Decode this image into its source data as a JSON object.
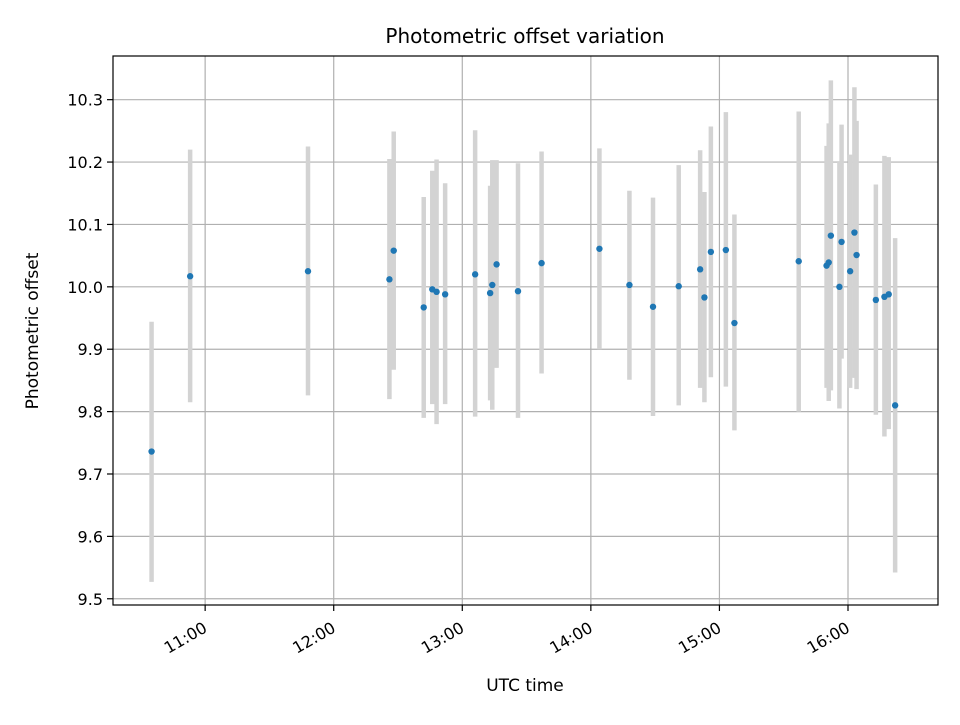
{
  "chart_data": {
    "type": "scatter",
    "title": "Photometric offset variation",
    "xlabel": "UTC time",
    "ylabel": "Photometric offset",
    "grid": true,
    "colors": {
      "point": "#1f77b4",
      "errorbar": "#d3d3d3",
      "grid": "#b0b0b0"
    },
    "xlim": [
      "10:17",
      "16:42"
    ],
    "ylim": [
      9.49,
      10.37
    ],
    "xticks": [
      "11:00",
      "12:00",
      "13:00",
      "14:00",
      "15:00",
      "16:00"
    ],
    "yticks": [
      "9.5",
      "9.6",
      "9.7",
      "9.8",
      "9.9",
      "10.0",
      "10.1",
      "10.2",
      "10.3"
    ],
    "points": [
      {
        "x": "10:35",
        "y": 9.736,
        "lo": 9.527,
        "hi": 9.944
      },
      {
        "x": "10:53",
        "y": 10.017,
        "lo": 9.815,
        "hi": 10.22
      },
      {
        "x": "11:48",
        "y": 10.025,
        "lo": 9.826,
        "hi": 10.225
      },
      {
        "x": "12:26",
        "y": 10.012,
        "lo": 9.82,
        "hi": 10.205
      },
      {
        "x": "12:28",
        "y": 10.058,
        "lo": 9.867,
        "hi": 10.249
      },
      {
        "x": "12:42",
        "y": 9.967,
        "lo": 9.79,
        "hi": 10.144
      },
      {
        "x": "12:46",
        "y": 9.996,
        "lo": 9.812,
        "hi": 10.186
      },
      {
        "x": "12:48",
        "y": 9.992,
        "lo": 9.78,
        "hi": 10.204
      },
      {
        "x": "12:52",
        "y": 9.988,
        "lo": 9.812,
        "hi": 10.166
      },
      {
        "x": "13:06",
        "y": 10.02,
        "lo": 9.792,
        "hi": 10.251
      },
      {
        "x": "13:13",
        "y": 9.99,
        "lo": 9.818,
        "hi": 10.162
      },
      {
        "x": "13:14",
        "y": 10.003,
        "lo": 9.803,
        "hi": 10.203
      },
      {
        "x": "13:16",
        "y": 10.036,
        "lo": 9.87,
        "hi": 10.203
      },
      {
        "x": "13:26",
        "y": 9.993,
        "lo": 9.79,
        "hi": 10.198
      },
      {
        "x": "13:37",
        "y": 10.038,
        "lo": 9.861,
        "hi": 10.217
      },
      {
        "x": "14:04",
        "y": 10.061,
        "lo": 9.9,
        "hi": 10.222
      },
      {
        "x": "14:18",
        "y": 10.003,
        "lo": 9.851,
        "hi": 10.154
      },
      {
        "x": "14:29",
        "y": 9.968,
        "lo": 9.793,
        "hi": 10.143
      },
      {
        "x": "14:41",
        "y": 10.001,
        "lo": 9.81,
        "hi": 10.195
      },
      {
        "x": "14:51",
        "y": 10.028,
        "lo": 9.838,
        "hi": 10.219
      },
      {
        "x": "14:53",
        "y": 9.983,
        "lo": 9.815,
        "hi": 10.152
      },
      {
        "x": "14:56",
        "y": 10.056,
        "lo": 9.855,
        "hi": 10.257
      },
      {
        "x": "15:03",
        "y": 10.059,
        "lo": 9.84,
        "hi": 10.28
      },
      {
        "x": "15:07",
        "y": 9.942,
        "lo": 9.77,
        "hi": 10.116
      },
      {
        "x": "15:37",
        "y": 10.041,
        "lo": 9.8,
        "hi": 10.281
      },
      {
        "x": "15:50",
        "y": 10.034,
        "lo": 9.838,
        "hi": 10.226
      },
      {
        "x": "15:51",
        "y": 10.039,
        "lo": 9.817,
        "hi": 10.262
      },
      {
        "x": "15:52",
        "y": 10.082,
        "lo": 9.834,
        "hi": 10.331
      },
      {
        "x": "15:56",
        "y": 10.0,
        "lo": 9.805,
        "hi": 10.2
      },
      {
        "x": "15:57",
        "y": 10.072,
        "lo": 9.885,
        "hi": 10.26
      },
      {
        "x": "16:01",
        "y": 10.025,
        "lo": 9.838,
        "hi": 10.212
      },
      {
        "x": "16:03",
        "y": 10.087,
        "lo": 9.854,
        "hi": 10.32
      },
      {
        "x": "16:04",
        "y": 10.051,
        "lo": 9.836,
        "hi": 10.266
      },
      {
        "x": "16:13",
        "y": 9.979,
        "lo": 9.795,
        "hi": 10.164
      },
      {
        "x": "16:17",
        "y": 9.984,
        "lo": 9.76,
        "hi": 10.21
      },
      {
        "x": "16:19",
        "y": 9.988,
        "lo": 9.772,
        "hi": 10.208
      },
      {
        "x": "16:22",
        "y": 9.81,
        "lo": 9.542,
        "hi": 10.078
      }
    ]
  }
}
